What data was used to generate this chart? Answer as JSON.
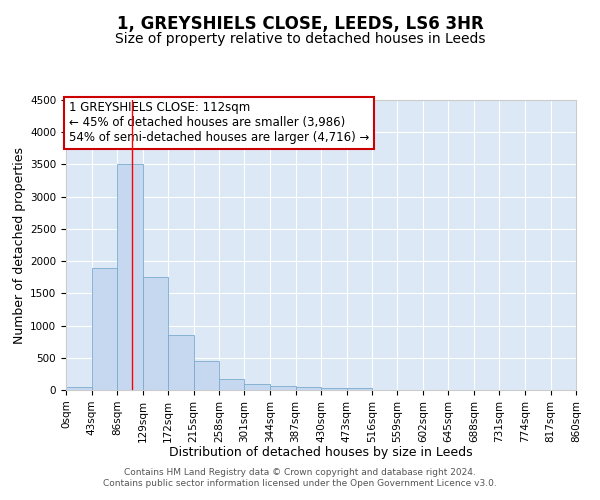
{
  "title": "1, GREYSHIELS CLOSE, LEEDS, LS6 3HR",
  "subtitle": "Size of property relative to detached houses in Leeds",
  "xlabel": "Distribution of detached houses by size in Leeds",
  "ylabel": "Number of detached properties",
  "bar_color": "#c5d8f0",
  "bar_edge_color": "#7aabcf",
  "background_color": "#dce8f5",
  "grid_color": "#ffffff",
  "bin_width": 43,
  "bin_starts": [
    0,
    43,
    86,
    129,
    172,
    215,
    258,
    301,
    344,
    387,
    430,
    473,
    516,
    559,
    602,
    645,
    688,
    731,
    774,
    817
  ],
  "bar_heights": [
    50,
    1900,
    3500,
    1750,
    850,
    450,
    170,
    100,
    60,
    50,
    30,
    30,
    0,
    0,
    0,
    0,
    0,
    0,
    0,
    0
  ],
  "tick_labels": [
    "0sqm",
    "43sqm",
    "86sqm",
    "129sqm",
    "172sqm",
    "215sqm",
    "258sqm",
    "301sqm",
    "344sqm",
    "387sqm",
    "430sqm",
    "473sqm",
    "516sqm",
    "559sqm",
    "602sqm",
    "645sqm",
    "688sqm",
    "731sqm",
    "774sqm",
    "817sqm",
    "860sqm"
  ],
  "red_line_x": 112,
  "ylim": [
    0,
    4500
  ],
  "yticks": [
    0,
    500,
    1000,
    1500,
    2000,
    2500,
    3000,
    3500,
    4000,
    4500
  ],
  "annotation_box_title": "1 GREYSHIELS CLOSE: 112sqm",
  "annotation_line1": "← 45% of detached houses are smaller (3,986)",
  "annotation_line2": "54% of semi-detached houses are larger (4,716) →",
  "annotation_box_edge": "#cc0000",
  "footer_line1": "Contains HM Land Registry data © Crown copyright and database right 2024.",
  "footer_line2": "Contains public sector information licensed under the Open Government Licence v3.0.",
  "title_fontsize": 12,
  "subtitle_fontsize": 10,
  "axis_label_fontsize": 9,
  "tick_fontsize": 7.5,
  "annotation_fontsize": 8.5,
  "footer_fontsize": 6.5
}
